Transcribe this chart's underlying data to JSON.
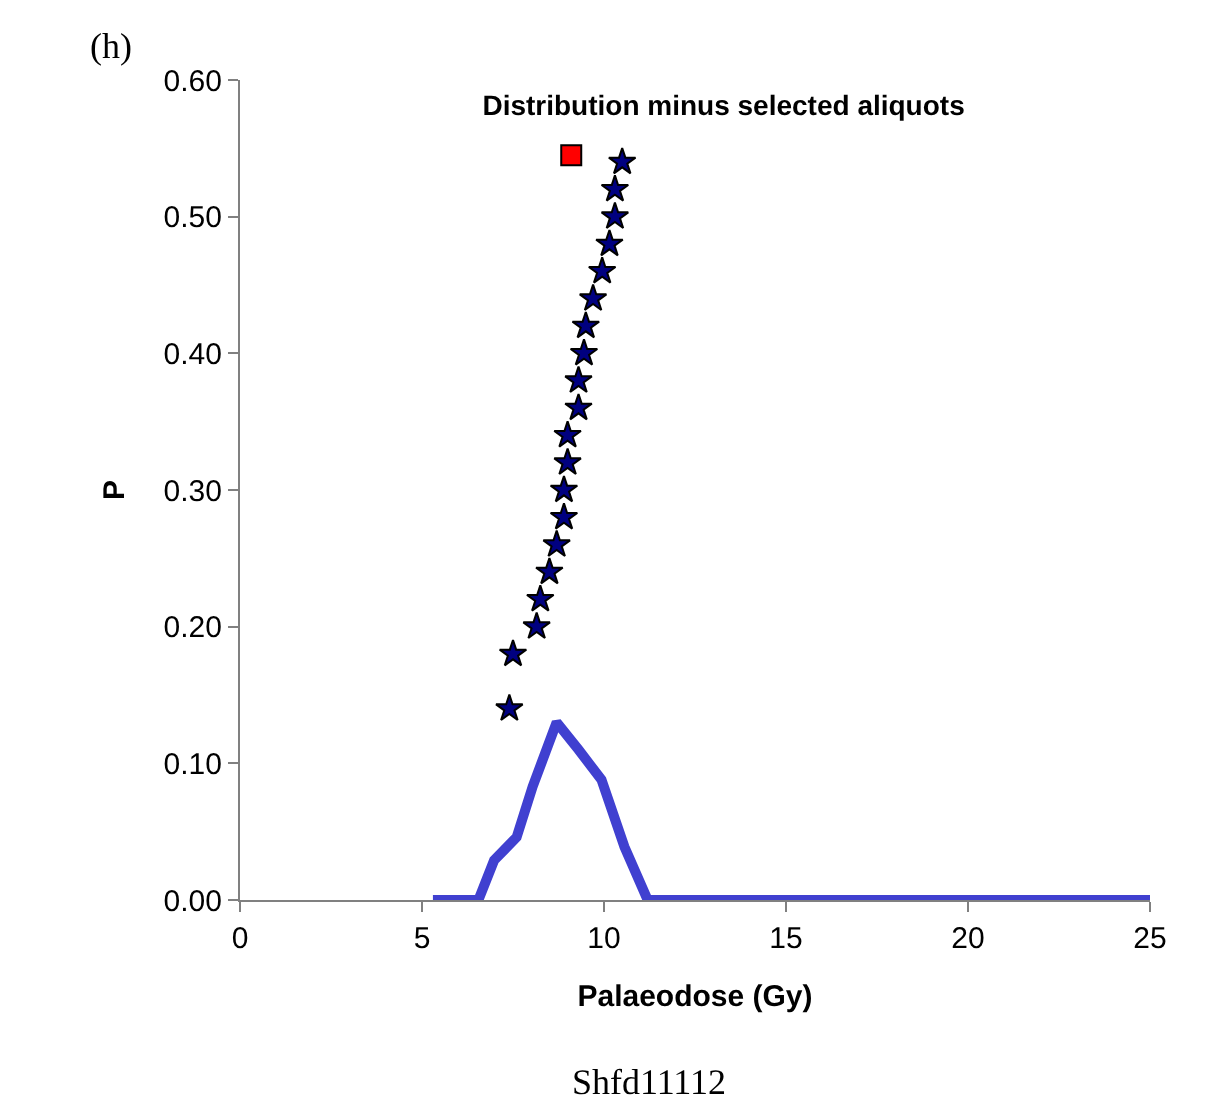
{
  "chart_data": {
    "type": "scatter",
    "title": "Distribution minus selected aliquots",
    "xlabel": "Palaeodose (Gy)",
    "ylabel": "P",
    "xlim": [
      0,
      25
    ],
    "xticks": [
      0,
      5,
      10,
      15,
      20,
      25
    ],
    "ylim": [
      0,
      0.6
    ],
    "yticks": [
      {
        "value": 0,
        "label": "0.00"
      },
      {
        "value": 0.1,
        "label": "0.10"
      },
      {
        "value": 0.2,
        "label": "0.20"
      },
      {
        "value": 0.3,
        "label": "0.30"
      },
      {
        "value": 0.4,
        "label": "0.40"
      },
      {
        "value": 0.5,
        "label": "0.50"
      },
      {
        "value": 0.6,
        "label": "0.60"
      }
    ],
    "grid": false,
    "annotations": [
      "(h)",
      "Shfd11112"
    ],
    "series": [
      {
        "type": "line",
        "color": "#4040d0",
        "marker": "none",
        "x": [
          5.3,
          5.7,
          6.55,
          6.98,
          7.6,
          8.04,
          8.7,
          9.3,
          9.93,
          10.56,
          11.2,
          25
        ],
        "values": [
          0,
          0,
          0,
          0.029,
          0.046,
          0.083,
          0.13,
          0.11,
          0.088,
          0.039,
          0,
          0
        ]
      },
      {
        "color": "#000080",
        "marker": "star",
        "x": [
          10.5,
          10.3,
          10.3,
          10.15,
          9.95,
          9.7,
          9.5,
          9.45,
          9.3,
          9.3,
          9.0,
          9.0,
          8.9,
          8.9,
          8.7,
          8.5,
          8.25,
          8.15,
          7.5,
          7.4
        ],
        "values": [
          0.54,
          0.52,
          0.5,
          0.48,
          0.46,
          0.44,
          0.42,
          0.4,
          0.38,
          0.36,
          0.34,
          0.32,
          0.3,
          0.28,
          0.26,
          0.24,
          0.22,
          0.2,
          0.18,
          0.14
        ]
      },
      {
        "color": "#ff0000",
        "marker": "square",
        "x": [
          9.1
        ],
        "values": [
          0.545
        ]
      }
    ]
  }
}
